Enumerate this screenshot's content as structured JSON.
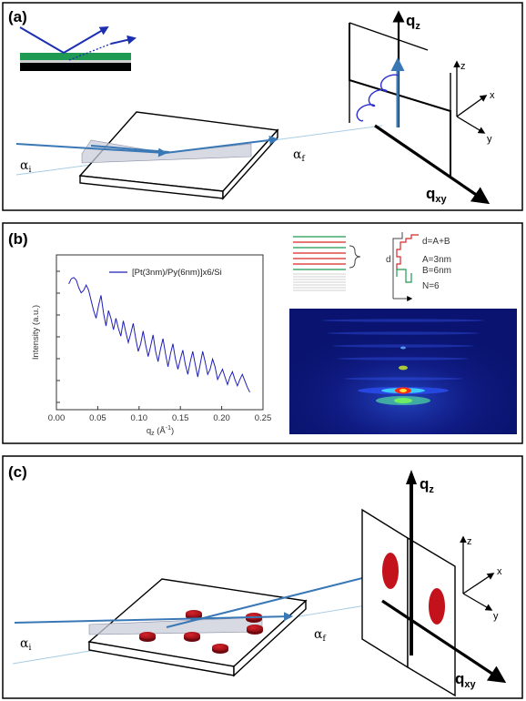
{
  "panels": {
    "a": {
      "label": "(a)",
      "qz": "q",
      "qz_sub": "z",
      "qxy": "q",
      "qxy_sub": "xy",
      "axis_x": "x",
      "axis_y": "y",
      "axis_z": "z",
      "alpha_i": "α",
      "alpha_i_sub": "i",
      "alpha_f": "α",
      "alpha_f_sub": "f"
    },
    "b": {
      "label": "(b)",
      "notes": [
        "d=A+B",
        "A=3nm",
        "B=6nm",
        "N=6"
      ],
      "d_mark": "d"
    },
    "c": {
      "label": "(c)",
      "qz": "q",
      "qz_sub": "z",
      "qxy": "q",
      "qxy_sub": "xy",
      "axis_x": "x",
      "axis_y": "y",
      "axis_z": "z",
      "alpha_i": "α",
      "alpha_i_sub": "i",
      "alpha_f": "α",
      "alpha_f_sub": "f"
    }
  },
  "colors": {
    "beam": "#3a78b5",
    "curve": "#1f1fb8",
    "disk": "#b4121b",
    "green_layer": "#1e9a52",
    "detector_bg": "#0a1470"
  },
  "chart_data": {
    "type": "line",
    "legend": "[Pt(3nm)/Py(6nm)]x6/Si",
    "xlabel": "q",
    "xlabel_sub": "z",
    "xlabel_unit": "(Å",
    "xlabel_unit_sup": "-1",
    "xlabel_close": ")",
    "ylabel": "Intensity (a.u.)",
    "xlim": [
      0.0,
      0.25
    ],
    "xticks": [
      "0.00",
      "0.05",
      "0.10",
      "0.15",
      "0.20",
      "0.25"
    ],
    "log_y": true,
    "series": [
      {
        "x": [
          0.015,
          0.018,
          0.021,
          0.024,
          0.027,
          0.03,
          0.033,
          0.036,
          0.039,
          0.042,
          0.045,
          0.048,
          0.051,
          0.054,
          0.057,
          0.06,
          0.063,
          0.066,
          0.069,
          0.072,
          0.075,
          0.078,
          0.081,
          0.084,
          0.087,
          0.09,
          0.093,
          0.096,
          0.099,
          0.102,
          0.105,
          0.108,
          0.111,
          0.114,
          0.117,
          0.12,
          0.123,
          0.126,
          0.129,
          0.132,
          0.135,
          0.138,
          0.141,
          0.144,
          0.147,
          0.15,
          0.153,
          0.156,
          0.159,
          0.162,
          0.165,
          0.168,
          0.171,
          0.174,
          0.177,
          0.18,
          0.183,
          0.186,
          0.189,
          0.192,
          0.195,
          0.198,
          0.201,
          0.204,
          0.207,
          0.21,
          0.213,
          0.216,
          0.219,
          0.222,
          0.225,
          0.228,
          0.231,
          0.234
        ],
        "y": [
          0.93,
          0.97,
          0.98,
          0.96,
          0.9,
          0.86,
          0.88,
          0.92,
          0.88,
          0.8,
          0.72,
          0.66,
          0.76,
          0.84,
          0.7,
          0.6,
          0.72,
          0.66,
          0.57,
          0.66,
          0.58,
          0.52,
          0.64,
          0.55,
          0.47,
          0.54,
          0.62,
          0.5,
          0.4,
          0.46,
          0.56,
          0.45,
          0.36,
          0.44,
          0.53,
          0.4,
          0.32,
          0.42,
          0.5,
          0.38,
          0.28,
          0.38,
          0.46,
          0.34,
          0.26,
          0.34,
          0.41,
          0.3,
          0.22,
          0.32,
          0.4,
          0.3,
          0.2,
          0.3,
          0.4,
          0.32,
          0.22,
          0.26,
          0.34,
          0.28,
          0.18,
          0.22,
          0.26,
          0.2,
          0.14,
          0.2,
          0.24,
          0.18,
          0.13,
          0.18,
          0.22,
          0.17,
          0.12,
          0.08
        ]
      }
    ]
  }
}
